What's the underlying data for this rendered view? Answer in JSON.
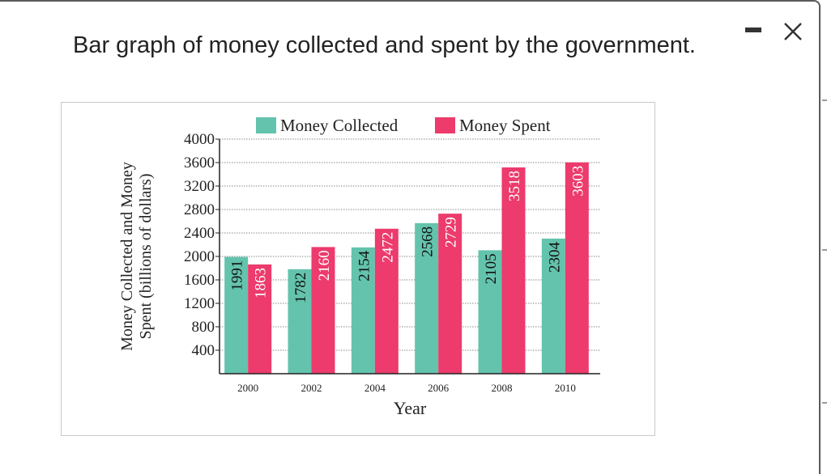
{
  "window": {
    "title": "Bar graph of money collected and spent by the government.",
    "minimize_icon": "minimize-icon",
    "close_icon": "close-icon"
  },
  "colors": {
    "collected": "#64c3ad",
    "spent": "#ec3b6c",
    "grid": "#8a8a8a",
    "axis": "#222222"
  },
  "chart_data": {
    "type": "bar",
    "title": "",
    "xlabel": "Year",
    "ylabel": "Money Collected and Money Spent (billions of dollars)",
    "ylabel_lines": [
      "Money Collected and Money",
      "Spent (billions of dollars)"
    ],
    "categories": [
      "2000",
      "2002",
      "2004",
      "2006",
      "2008",
      "2010"
    ],
    "series": [
      {
        "name": "Money Collected",
        "values": [
          1991,
          1782,
          2154,
          2568,
          2105,
          2304
        ]
      },
      {
        "name": "Money Spent",
        "values": [
          1863,
          2160,
          2472,
          2729,
          3518,
          3603
        ]
      }
    ],
    "yticks": [
      400,
      800,
      1200,
      1600,
      2000,
      2400,
      2800,
      3200,
      3600,
      4000
    ],
    "ylim": [
      0,
      4000
    ],
    "grid": true,
    "legend": "top-center",
    "bar_labels": [
      "1991",
      "1863",
      "1782",
      "2160",
      "2154",
      "2472",
      "2568",
      "2729",
      "2105",
      "3518",
      "2304",
      "3603"
    ]
  }
}
